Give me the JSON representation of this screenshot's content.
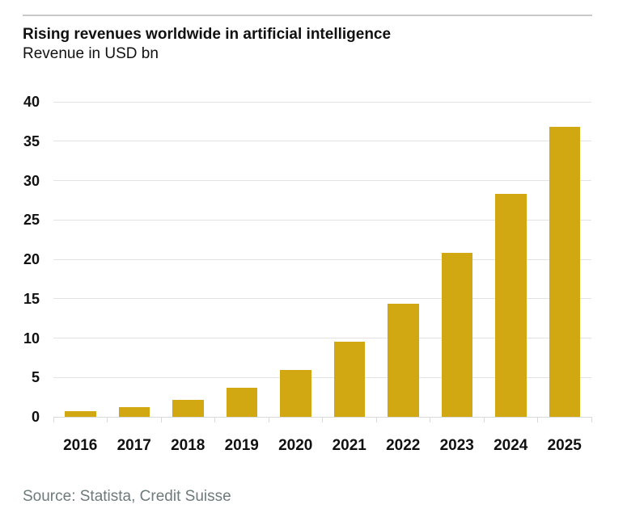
{
  "page": {
    "title": "Rising revenues worldwide in artificial intelligence",
    "subtitle": "Revenue in USD bn",
    "source": "Source: Statista, Credit Suisse"
  },
  "colors": {
    "bar": "#d1a712",
    "grid": "#e3e3e3",
    "axis_line": "#d9d9d9",
    "text": "#111111",
    "source_text": "#6e7a7b",
    "top_rule": "#c9c9c9"
  },
  "chart_data": {
    "type": "bar",
    "title": "Rising revenues worldwide in artificial intelligence",
    "subtitle": "Revenue in USD bn",
    "categories": [
      "2016",
      "2017",
      "2018",
      "2019",
      "2020",
      "2021",
      "2022",
      "2023",
      "2024",
      "2025"
    ],
    "values": [
      0.7,
      1.2,
      2.2,
      3.7,
      6.0,
      9.5,
      14.4,
      20.8,
      28.3,
      36.8
    ],
    "xlabel": "",
    "ylabel": "Revenue in USD bn",
    "ylim": [
      0,
      40
    ],
    "ytick_step": 5,
    "yticks": [
      0,
      5,
      10,
      15,
      20,
      25,
      30,
      35,
      40
    ],
    "grid": true,
    "legend": false,
    "source": "Source: Statista, Credit Suisse"
  }
}
